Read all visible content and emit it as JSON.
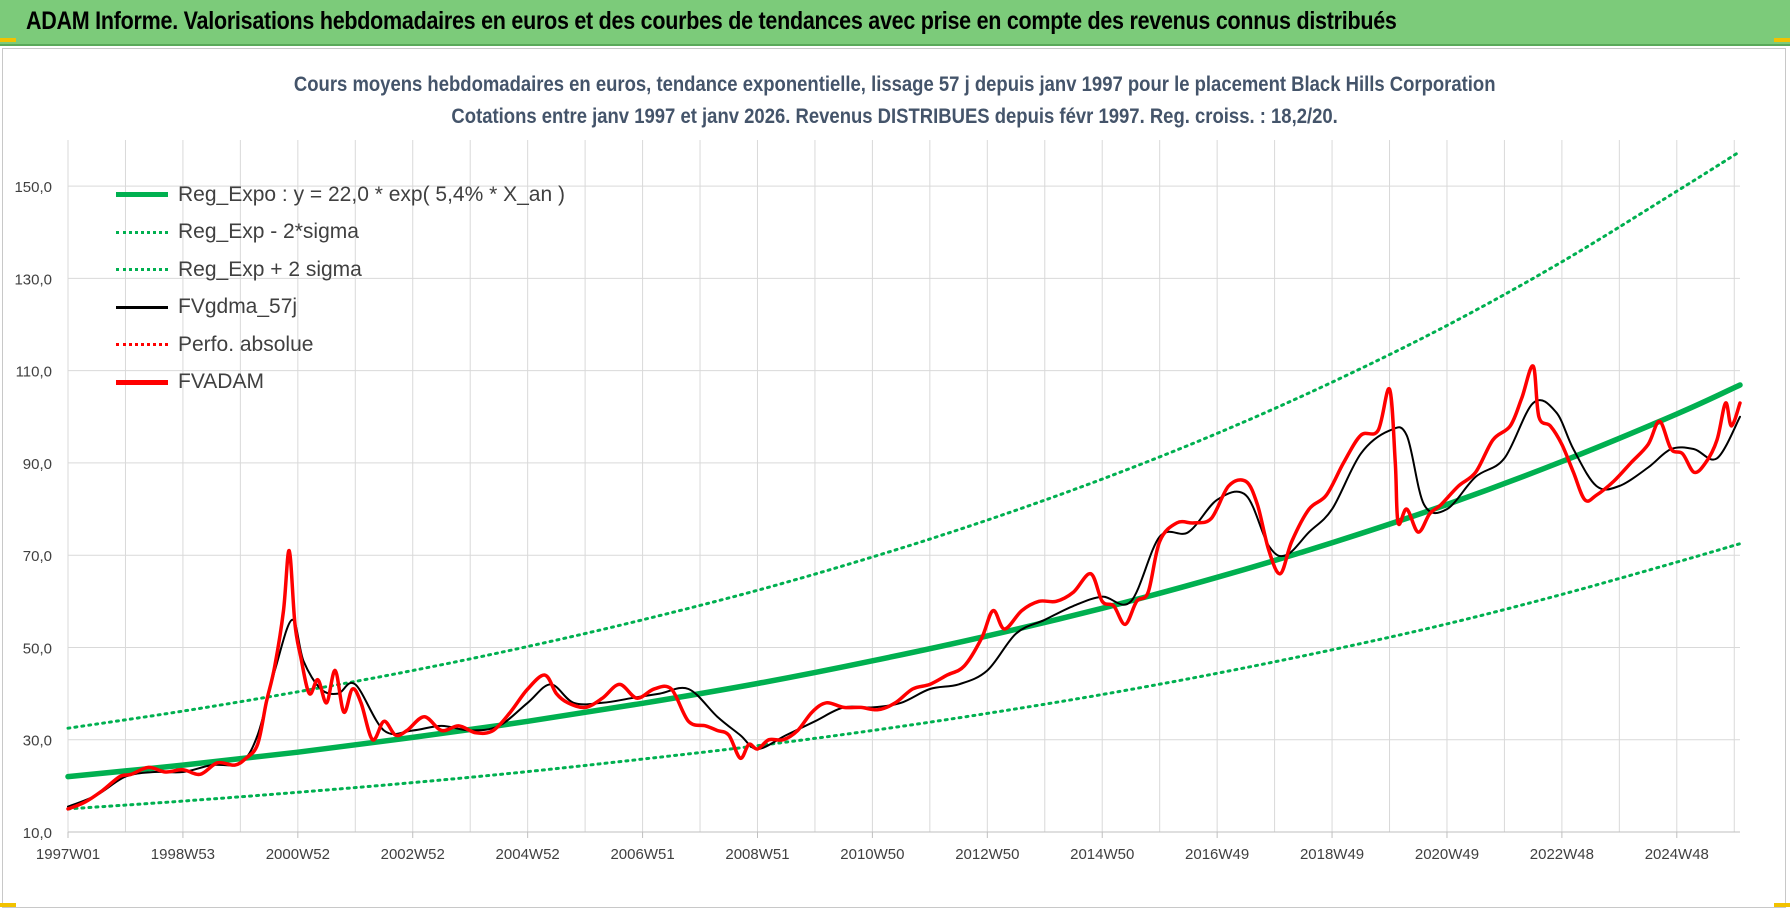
{
  "banner": {
    "title": "ADAM Informe. Valorisations hebdomadaires en euros et des courbes de tendances avec prise en compte des revenus connus distribués"
  },
  "colors": {
    "banner_bg": "#7ccb7a",
    "trend_green": "#00b050",
    "gdma_black": "#000000",
    "fvadam_red": "#ff0000",
    "gridline": "#d9d9d9",
    "title_text": "#44546a"
  },
  "chart_data": {
    "type": "line",
    "title": "Cours moyens hebdomadaires en euros, tendance exponentielle, lissage 57 j depuis janv 1997 pour le placement Black Hills Corporation",
    "subtitle": "Cotations entre janv 1997 et janv 2026. Revenus DISTRIBUES depuis févr 1997. Reg. croiss. : 18,2/20.",
    "xlabel": "",
    "ylabel": "",
    "ylim": [
      10,
      160
    ],
    "xlim": [
      1997.0,
      2026.1
    ],
    "grid": true,
    "legend_position": "top-left",
    "y_ticks": [
      "10,0",
      "30,0",
      "50,0",
      "70,0",
      "90,0",
      "110,0",
      "130,0",
      "150,0"
    ],
    "y_tick_values": [
      10,
      30,
      50,
      70,
      90,
      110,
      130,
      150
    ],
    "x_ticks": [
      "1997W01",
      "1998W53",
      "2000W52",
      "2002W52",
      "2004W52",
      "2006W51",
      "2008W51",
      "2010W50",
      "2012W50",
      "2014W50",
      "2016W49",
      "2018W49",
      "2020W49",
      "2022W48",
      "2024W48"
    ],
    "x_tick_values": [
      1997.0,
      1999.0,
      2001.0,
      2003.0,
      2005.0,
      2007.0,
      2009.0,
      2011.0,
      2013.0,
      2015.0,
      2017.0,
      2019.0,
      2021.0,
      2023.0,
      2025.0
    ],
    "legend": [
      {
        "label": "Reg_Expo : y = 22,0 * exp( 5,4% *  X_an )",
        "style": "solid-thick",
        "color": "#00b050"
      },
      {
        "label": "Reg_Exp - 2*sigma",
        "style": "dotted",
        "color": "#00b050"
      },
      {
        "label": "Reg_Exp + 2 sigma",
        "style": "dotted",
        "color": "#00b050"
      },
      {
        "label": "FVgdma_57j",
        "style": "solid-thin",
        "color": "#000000"
      },
      {
        "label": "Perfo. absolue",
        "style": "dotted",
        "color": "#ff0000"
      },
      {
        "label": "FVADAM",
        "style": "solid-thick",
        "color": "#ff0000"
      }
    ],
    "series": [
      {
        "name": "Reg_Expo : y = 22,0 * exp( 5,4% *  X_an )",
        "x": [
          1997.0,
          1999.0,
          2001.0,
          2003.0,
          2005.0,
          2007.0,
          2009.0,
          2011.0,
          2013.0,
          2015.0,
          2017.0,
          2019.0,
          2021.0,
          2023.0,
          2025.0,
          2026.1
        ],
        "values": [
          22.0,
          24.5,
          27.3,
          30.5,
          34.0,
          37.9,
          42.2,
          47.1,
          52.5,
          58.5,
          65.2,
          72.7,
          81.0,
          90.3,
          100.6,
          106.9
        ]
      },
      {
        "name": "Reg_Exp - 2*sigma",
        "x": [
          1997.0,
          1999.0,
          2001.0,
          2003.0,
          2005.0,
          2007.0,
          2009.0,
          2011.0,
          2013.0,
          2015.0,
          2017.0,
          2019.0,
          2021.0,
          2023.0,
          2025.0,
          2026.1
        ],
        "values": [
          15.0,
          16.7,
          18.6,
          20.7,
          23.1,
          25.8,
          28.7,
          32.0,
          35.7,
          39.8,
          44.4,
          49.5,
          55.1,
          61.5,
          68.5,
          72.5
        ]
      },
      {
        "name": "Reg_Exp + 2 sigma",
        "x": [
          1997.0,
          1999.0,
          2001.0,
          2003.0,
          2005.0,
          2007.0,
          2009.0,
          2011.0,
          2013.0,
          2015.0,
          2017.0,
          2019.0,
          2021.0,
          2023.0,
          2025.0,
          2026.1
        ],
        "values": [
          32.5,
          36.2,
          40.4,
          45.0,
          50.2,
          56.0,
          62.4,
          69.6,
          77.6,
          86.5,
          96.4,
          107.5,
          119.8,
          133.6,
          148.9,
          157.5
        ]
      },
      {
        "name": "FVgdma_57j",
        "x": [
          1997.0,
          1997.5,
          1998.0,
          1998.5,
          1999.0,
          1999.5,
          2000.0,
          2000.3,
          2000.6,
          2000.9,
          2001.1,
          2001.4,
          2001.7,
          2002.0,
          2002.5,
          2003.0,
          2003.5,
          2004.0,
          2004.5,
          2005.0,
          2005.4,
          2005.8,
          2006.3,
          2006.8,
          2007.3,
          2007.8,
          2008.3,
          2008.7,
          2009.0,
          2009.5,
          2010.0,
          2010.5,
          2011.0,
          2011.5,
          2012.0,
          2012.5,
          2013.0,
          2013.5,
          2014.0,
          2014.5,
          2015.0,
          2015.5,
          2016.0,
          2016.5,
          2017.0,
          2017.5,
          2017.9,
          2018.2,
          2018.6,
          2019.0,
          2019.5,
          2020.0,
          2020.3,
          2020.6,
          2021.0,
          2021.5,
          2022.0,
          2022.5,
          2022.9,
          2023.2,
          2023.6,
          2024.0,
          2024.5,
          2024.9,
          2025.3,
          2025.7,
          2026.1
        ],
        "values": [
          15.5,
          18.0,
          22.0,
          23.0,
          23.0,
          24.5,
          25.0,
          31.0,
          45.0,
          56.0,
          47.0,
          41.0,
          40.0,
          42.0,
          32.0,
          32.0,
          33.0,
          32.0,
          33.0,
          38.0,
          42.0,
          38.0,
          38.0,
          39.0,
          40.0,
          41.0,
          35.0,
          31.0,
          28.0,
          31.0,
          34.0,
          37.0,
          37.0,
          38.0,
          41.0,
          42.0,
          45.0,
          53.0,
          56.0,
          59.0,
          61.0,
          60.0,
          74.0,
          75.0,
          82.0,
          83.0,
          72.0,
          70.0,
          75.0,
          80.0,
          92.0,
          97.0,
          96.0,
          81.0,
          80.0,
          87.0,
          91.0,
          103.0,
          101.0,
          93.0,
          85.0,
          85.0,
          89.0,
          93.0,
          93.0,
          91.0,
          100.0
        ]
      },
      {
        "name": "FVADAM",
        "x": [
          1997.0,
          1997.3,
          1997.6,
          1997.9,
          1998.1,
          1998.4,
          1998.7,
          1999.0,
          1999.3,
          1999.6,
          1999.9,
          2000.1,
          2000.3,
          2000.45,
          2000.6,
          2000.75,
          2000.85,
          2000.95,
          2001.05,
          2001.2,
          2001.35,
          2001.5,
          2001.65,
          2001.8,
          2001.95,
          2002.1,
          2002.3,
          2002.5,
          2002.7,
          2002.9,
          2003.2,
          2003.5,
          2003.8,
          2004.1,
          2004.4,
          2004.7,
          2005.0,
          2005.3,
          2005.5,
          2005.7,
          2006.0,
          2006.3,
          2006.6,
          2006.9,
          2007.2,
          2007.5,
          2007.8,
          2008.1,
          2008.3,
          2008.5,
          2008.7,
          2008.85,
          2009.0,
          2009.2,
          2009.45,
          2009.7,
          2009.95,
          2010.2,
          2010.5,
          2010.8,
          2011.1,
          2011.4,
          2011.7,
          2012.0,
          2012.3,
          2012.6,
          2012.9,
          2013.1,
          2013.3,
          2013.6,
          2013.9,
          2014.2,
          2014.5,
          2014.8,
          2015.0,
          2015.2,
          2015.4,
          2015.6,
          2015.8,
          2016.0,
          2016.3,
          2016.6,
          2016.9,
          2017.2,
          2017.5,
          2017.7,
          2017.9,
          2018.1,
          2018.3,
          2018.6,
          2018.9,
          2019.2,
          2019.5,
          2019.8,
          2020.0,
          2020.1,
          2020.15,
          2020.3,
          2020.5,
          2020.7,
          2020.9,
          2021.2,
          2021.5,
          2021.8,
          2022.1,
          2022.3,
          2022.5,
          2022.6,
          2022.8,
          2023.0,
          2023.2,
          2023.4,
          2023.6,
          2023.9,
          2024.2,
          2024.5,
          2024.7,
          2024.9,
          2025.1,
          2025.3,
          2025.5,
          2025.7,
          2025.85,
          2025.95,
          2026.1
        ],
        "values": [
          15.0,
          16.5,
          19.0,
          22.0,
          22.5,
          24.0,
          23.0,
          23.5,
          22.5,
          25.0,
          24.5,
          26.0,
          29.0,
          38.0,
          46.0,
          58.0,
          71.0,
          55.0,
          48.0,
          40.0,
          43.0,
          38.0,
          45.0,
          36.0,
          41.0,
          38.0,
          30.0,
          34.0,
          31.0,
          32.0,
          35.0,
          32.0,
          33.0,
          31.5,
          32.0,
          36.0,
          41.0,
          44.0,
          40.0,
          38.0,
          37.0,
          39.0,
          42.0,
          39.0,
          41.0,
          41.0,
          34.0,
          33.0,
          32.0,
          31.0,
          26.0,
          29.0,
          28.0,
          30.0,
          30.0,
          32.0,
          36.0,
          38.0,
          37.0,
          37.0,
          36.5,
          38.0,
          41.0,
          42.0,
          44.0,
          46.0,
          52.0,
          58.0,
          54.0,
          58.0,
          60.0,
          60.0,
          62.0,
          66.0,
          60.0,
          59.0,
          55.0,
          60.0,
          62.0,
          73.0,
          77.0,
          77.0,
          78.0,
          85.0,
          86.0,
          81.0,
          71.0,
          66.0,
          73.0,
          80.0,
          83.0,
          90.0,
          96.0,
          97.0,
          106.0,
          90.0,
          77.0,
          80.0,
          75.0,
          79.0,
          81.0,
          85.0,
          88.0,
          95.0,
          98.0,
          104.0,
          111.0,
          100.0,
          98.0,
          94.0,
          88.0,
          82.0,
          83.0,
          86.0,
          90.0,
          94.0,
          99.0,
          93.0,
          92.0,
          88.0,
          90.0,
          95.0,
          103.0,
          98.0,
          103.0
        ]
      }
    ]
  }
}
